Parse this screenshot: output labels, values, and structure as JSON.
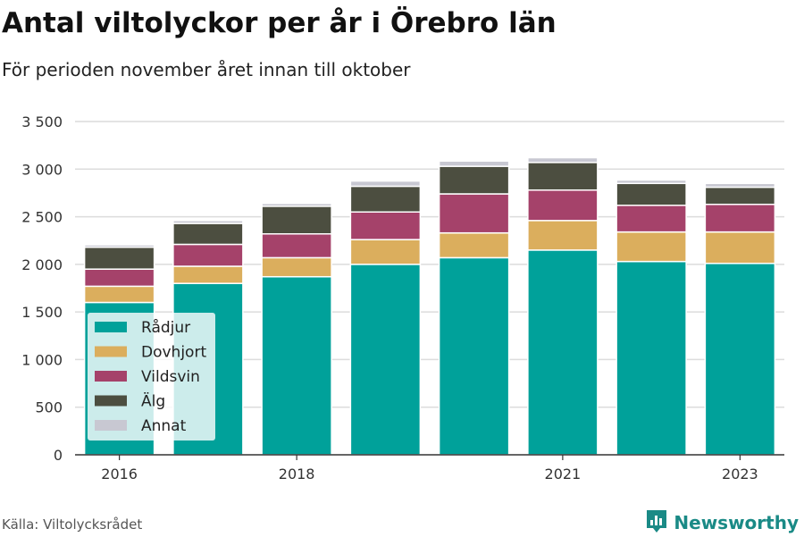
{
  "title": "Antal viltolyckor per år i Örebro län",
  "subtitle": "För perioden november året innan till oktober",
  "source": "Källa: Viltolycksrådet",
  "brand": "Newsworthy",
  "chart_data": {
    "type": "bar",
    "stacked": true,
    "categories": [
      "2016",
      "2017",
      "2018",
      "2019",
      "2020",
      "2021",
      "2022",
      "2023"
    ],
    "x_tick_labels": [
      "2016",
      "",
      "2018",
      "",
      "",
      "2021",
      "",
      "2023"
    ],
    "y_tick_labels": [
      "0",
      "500",
      "1 000",
      "1 500",
      "2 000",
      "2 500",
      "3 000",
      "3 500"
    ],
    "ylim": [
      0,
      3500
    ],
    "y_ticks": [
      0,
      500,
      1000,
      1500,
      2000,
      2500,
      3000,
      3500
    ],
    "grid": true,
    "legend_position": "bottom-left",
    "series": [
      {
        "name": "Rådjur",
        "color": "#00a19a",
        "values": [
          1600,
          1800,
          1870,
          2000,
          2070,
          2150,
          2030,
          2010
        ]
      },
      {
        "name": "Dovhjort",
        "color": "#dbae5d",
        "values": [
          170,
          180,
          200,
          260,
          260,
          310,
          310,
          330
        ]
      },
      {
        "name": "Vildsvin",
        "color": "#a5426a",
        "values": [
          180,
          230,
          250,
          290,
          410,
          320,
          280,
          290
        ]
      },
      {
        "name": "Älg",
        "color": "#4c4e40",
        "values": [
          230,
          220,
          290,
          270,
          290,
          290,
          230,
          180
        ]
      },
      {
        "name": "Annat",
        "color": "#c8c8d2",
        "values": [
          25,
          30,
          30,
          55,
          55,
          50,
          35,
          40
        ]
      }
    ]
  }
}
